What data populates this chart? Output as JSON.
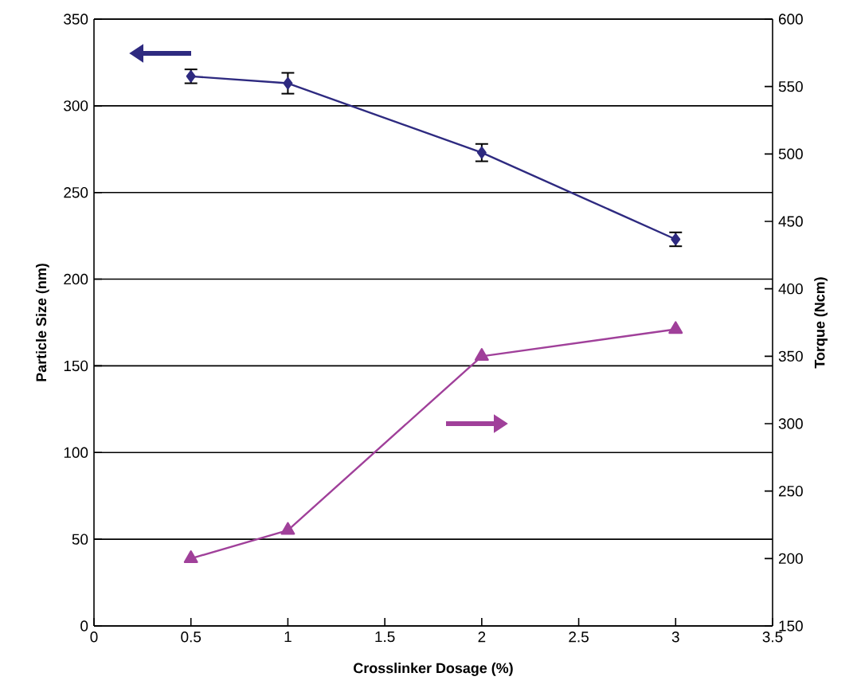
{
  "chart_data": {
    "type": "line",
    "xlabel": "Crosslinker Dosage (%)",
    "ylabel": "Particle Size (nm)",
    "y2label": "Torque (Ncm)",
    "x": [
      0.5,
      1,
      2,
      3
    ],
    "series": [
      {
        "color": "#2e2a80",
        "marker": "diamond",
        "values": [
          317,
          313,
          273,
          223
        ],
        "errors": [
          4,
          6,
          5,
          4
        ]
      },
      {
        "color": "#a0409a",
        "marker": "triangle",
        "axis": "y2",
        "values": [
          200,
          221,
          350,
          370
        ]
      }
    ],
    "xlim": [
      0,
      3.5
    ],
    "xticks": [
      0,
      0.5,
      1,
      1.5,
      2,
      2.5,
      3,
      3.5
    ],
    "ylim": [
      0,
      350
    ],
    "yticks": [
      0,
      50,
      100,
      150,
      200,
      250,
      300,
      350
    ],
    "y2lim": [
      150,
      600
    ],
    "y2ticks": [
      150,
      200,
      250,
      300,
      350,
      400,
      450,
      500,
      550,
      600
    ],
    "grid": "y"
  }
}
